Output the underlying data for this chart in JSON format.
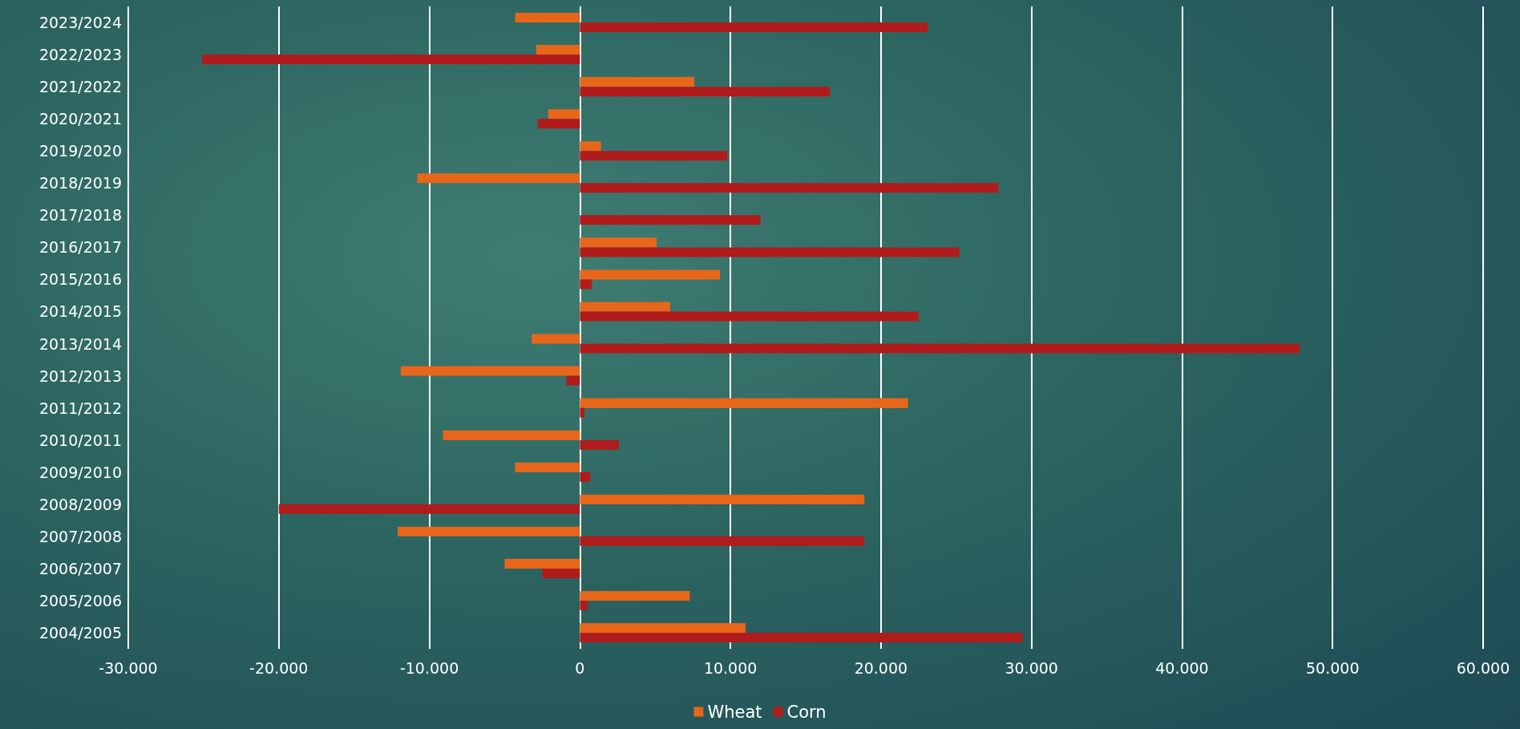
{
  "chart_data": {
    "type": "bar",
    "orientation": "horizontal",
    "categories": [
      "2023/2024",
      "2022/2023",
      "2021/2022",
      "2020/2021",
      "2019/2020",
      "2018/2019",
      "2017/2018",
      "2016/2017",
      "2015/2016",
      "2014/2015",
      "2013/2014",
      "2012/2013",
      "2011/2012",
      "2010/2011",
      "2009/2010",
      "2008/2009",
      "2007/2008",
      "2006/2007",
      "2005/2006",
      "2004/2005"
    ],
    "series": [
      {
        "name": "Wheat",
        "color": "#e8661a",
        "values": [
          -4300,
          -2900,
          7600,
          -2100,
          1400,
          -10800,
          0,
          5100,
          9300,
          6000,
          -3200,
          -11900,
          21800,
          -9100,
          -4300,
          18900,
          -12100,
          -5000,
          7300,
          11000
        ]
      },
      {
        "name": "Corn",
        "color": "#b01c1c",
        "values": [
          23100,
          -25100,
          16600,
          -2800,
          9800,
          27800,
          12000,
          25200,
          800,
          22500,
          47800,
          -900,
          300,
          2600,
          700,
          -20000,
          18900,
          -2500,
          500,
          29400
        ]
      }
    ],
    "xlim": [
      -30000,
      60000
    ],
    "xticks": [
      {
        "value": -30000,
        "label": "-30.000"
      },
      {
        "value": -20000,
        "label": "-20.000"
      },
      {
        "value": -10000,
        "label": "-10.000"
      },
      0,
      {
        "value": 10000,
        "label": "10.000"
      },
      {
        "value": 20000,
        "label": "20.000"
      },
      {
        "value": 30000,
        "label": "30.000"
      },
      {
        "value": 40000,
        "label": "40.000"
      },
      {
        "value": 50000,
        "label": "50.000"
      },
      {
        "value": 60000,
        "label": "60.000"
      }
    ],
    "grid": "x",
    "legend": "bottom"
  }
}
